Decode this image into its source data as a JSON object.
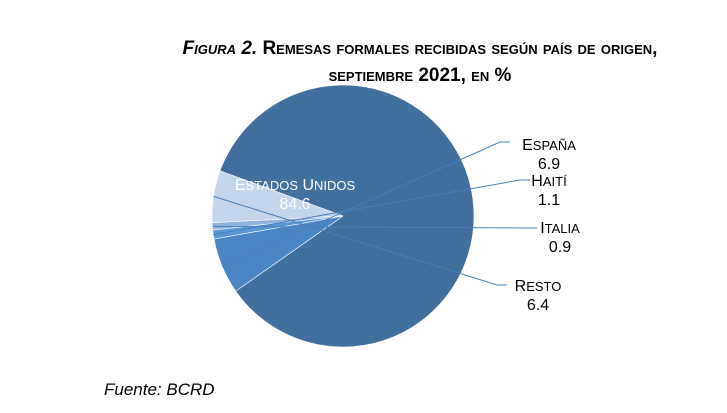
{
  "title": {
    "figure_label": "Figura 2.",
    "text": "Remesas formales recibidas según país de origen, septiembre 2021, en %"
  },
  "source": "Fuente: BCRD",
  "chart_data": {
    "type": "pie",
    "title": "Figura 2. Remesas formales recibidas según país de origen, septiembre 2021, en %",
    "slices": [
      {
        "label": "Estados Unidos",
        "value": 84.6,
        "value_label": "84.6",
        "color": "#41709f"
      },
      {
        "label": "España",
        "value": 6.9,
        "value_label": "6.9",
        "color": "#4a86c6"
      },
      {
        "label": "Haití",
        "value": 1.1,
        "value_label": "1.1",
        "color": "#5a97d6"
      },
      {
        "label": "Italia",
        "value": 0.9,
        "value_label": "0.9",
        "color": "#8fb3e0"
      },
      {
        "label": "Resto",
        "value": 6.4,
        "value_label": "6.4",
        "color": "#c4d6ee"
      }
    ]
  }
}
